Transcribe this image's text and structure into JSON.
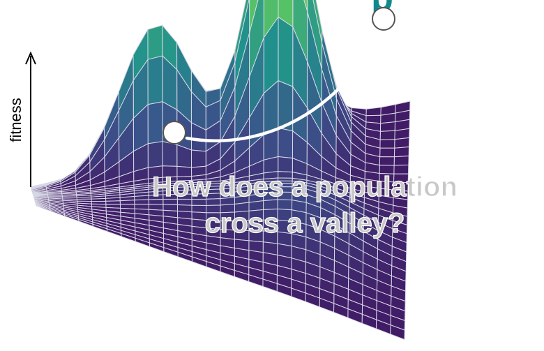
{
  "header": {
    "title_fragment": "p"
  },
  "axis": {
    "label": "fitness"
  },
  "question": {
    "line1": "How does a population",
    "line2": "cross a valley?"
  },
  "colors": {
    "title": "#0f8a8c",
    "mesh_line": "#d9d9e6",
    "arrow": "#ffffff",
    "marker_fill": "#ffffff",
    "marker_stroke": "#555555",
    "question_fill": "#c8c8c8",
    "question_stroke": "#ffffff",
    "colormap": [
      "#440154",
      "#3b528b",
      "#21918c",
      "#5ec962",
      "#fde725"
    ]
  },
  "surface": {
    "peaks": [
      {
        "name": "low-peak",
        "height": 0.55
      },
      {
        "name": "high-peak",
        "height": 1.0
      }
    ]
  }
}
